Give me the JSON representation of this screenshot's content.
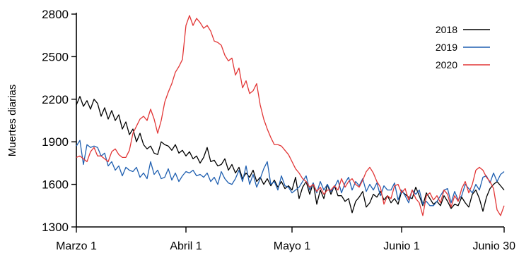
{
  "chart_data": {
    "type": "line",
    "ylabel": "Muertes diarias",
    "xlabel": "",
    "ylim": [
      1300,
      2800
    ],
    "yticks": [
      1300,
      1600,
      1900,
      2200,
      2500,
      2800
    ],
    "xlim": [
      1,
      122
    ],
    "x_tick_positions": [
      1,
      32,
      62,
      93,
      122
    ],
    "x_tick_labels": [
      "Marzo 1",
      "Abril 1",
      "Mayo 1",
      "Junio 1",
      "Junio 30"
    ],
    "legend_position": "top-right",
    "grid": false,
    "series": [
      {
        "name": "2018",
        "color": "#000000",
        "values": [
          2160,
          2220,
          2150,
          2190,
          2130,
          2200,
          2170,
          2080,
          2140,
          2060,
          2120,
          2050,
          2090,
          1990,
          2040,
          1950,
          1990,
          1900,
          1960,
          1880,
          1850,
          1870,
          1820,
          1810,
          1900,
          1880,
          1870,
          1840,
          1880,
          1820,
          1840,
          1800,
          1830,
          1780,
          1800,
          1750,
          1790,
          1860,
          1760,
          1770,
          1730,
          1740,
          1780,
          1700,
          1740,
          1680,
          1720,
          1640,
          1680,
          1650,
          1700,
          1620,
          1650,
          1600,
          1640,
          1590,
          1630,
          1580,
          1620,
          1570,
          1590,
          1560,
          1650,
          1500,
          1580,
          1620,
          1530,
          1610,
          1460,
          1560,
          1500,
          1600,
          1530,
          1590,
          1520,
          1520,
          1480,
          1500,
          1400,
          1480,
          1510,
          1550,
          1440,
          1470,
          1530,
          1510,
          1550,
          1490,
          1520,
          1470,
          1500,
          1460,
          1550,
          1530,
          1510,
          1500,
          1580,
          1520,
          1450,
          1540,
          1500,
          1460,
          1480,
          1450,
          1520,
          1480,
          1430,
          1460,
          1450,
          1510,
          1470,
          1440,
          1530,
          1560,
          1500,
          1410,
          1510,
          1570,
          1600,
          1620,
          1590,
          1560
        ]
      },
      {
        "name": "2019",
        "color": "#1f5fb0",
        "values": [
          1870,
          1910,
          1740,
          1880,
          1860,
          1870,
          1860,
          1800,
          1820,
          1730,
          1760,
          1700,
          1730,
          1660,
          1720,
          1700,
          1690,
          1720,
          1650,
          1680,
          1640,
          1760,
          1670,
          1700,
          1640,
          1650,
          1710,
          1630,
          1680,
          1620,
          1660,
          1690,
          1680,
          1700,
          1660,
          1670,
          1650,
          1680,
          1620,
          1650,
          1600,
          1690,
          1640,
          1610,
          1600,
          1640,
          1700,
          1620,
          1730,
          1600,
          1670,
          1580,
          1640,
          1710,
          1760,
          1600,
          1620,
          1560,
          1660,
          1590,
          1580,
          1540,
          1560,
          1580,
          1620,
          1660,
          1560,
          1610,
          1540,
          1620,
          1560,
          1600,
          1550,
          1580,
          1630,
          1540,
          1610,
          1650,
          1560,
          1620,
          1590,
          1640,
          1550,
          1600,
          1560,
          1610,
          1520,
          1590,
          1560,
          1560,
          1610,
          1490,
          1560,
          1520,
          1470,
          1560,
          1530,
          1560,
          1460,
          1480,
          1450,
          1450,
          1480,
          1520,
          1560,
          1570,
          1470,
          1550,
          1490,
          1520,
          1600,
          1570,
          1540,
          1600,
          1560,
          1650,
          1660,
          1610,
          1680,
          1620,
          1670,
          1690
        ]
      },
      {
        "name": "2020",
        "color": "#e23636",
        "values": [
          1790,
          1800,
          1780,
          1760,
          1830,
          1860,
          1800,
          1800,
          1780,
          1760,
          1830,
          1850,
          1810,
          1790,
          1790,
          1840,
          1960,
          2010,
          2060,
          2080,
          2050,
          2130,
          2060,
          1960,
          2050,
          2180,
          2250,
          2310,
          2390,
          2430,
          2480,
          2720,
          2790,
          2720,
          2770,
          2740,
          2700,
          2720,
          2680,
          2610,
          2600,
          2580,
          2510,
          2470,
          2490,
          2370,
          2420,
          2280,
          2330,
          2240,
          2260,
          2310,
          2160,
          2060,
          1990,
          1930,
          1880,
          1880,
          1870,
          1840,
          1810,
          1760,
          1710,
          1680,
          1640,
          1620,
          1580,
          1600,
          1550,
          1580,
          1530,
          1560,
          1560,
          1590,
          1560,
          1640,
          1580,
          1620,
          1640,
          1600,
          1580,
          1630,
          1690,
          1720,
          1680,
          1620,
          1580,
          1460,
          1520,
          1500,
          1590,
          1600,
          1540,
          1570,
          1490,
          1560,
          1500,
          1470,
          1380,
          1520,
          1540,
          1490,
          1520,
          1470,
          1560,
          1530,
          1440,
          1520,
          1480,
          1570,
          1620,
          1540,
          1600,
          1700,
          1720,
          1700,
          1650,
          1620,
          1570,
          1420,
          1380,
          1450
        ]
      }
    ]
  }
}
